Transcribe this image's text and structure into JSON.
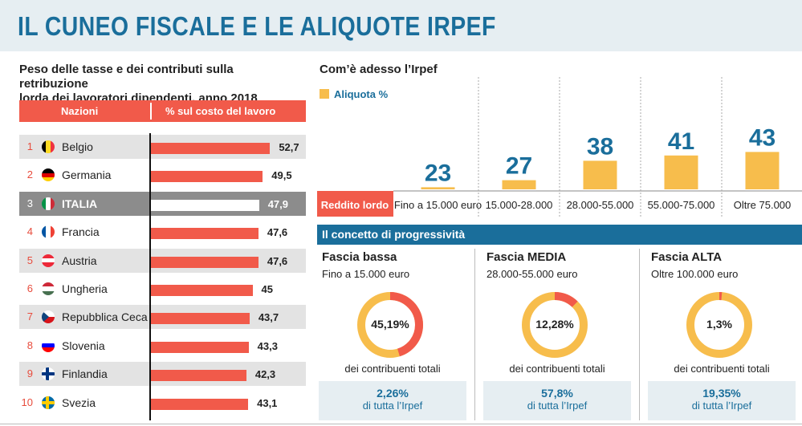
{
  "title": "IL CUNEO FISCALE E LE ALIQUOTE IRPEF",
  "left": {
    "subtitle_line1": "Peso delle tasse e dei contributi sulla retribuzione",
    "subtitle_line2": "lorda dei lavoratori dipendenti, anno 2018",
    "header_country": "Nazioni",
    "header_value": "% sul costo del lavoro"
  },
  "right": {
    "subtitle": "Com’è adesso l’Irpef",
    "legend": "Aliquota %",
    "x_label": "Reddito lordo"
  },
  "progressivity": {
    "title": "Il concetto di progressività",
    "bands": [
      {
        "name": "Fascia bassa",
        "range": "Fino a 15.000 euro",
        "share": 45.19,
        "share_label": "45,19%",
        "caption": "dei contribuenti totali",
        "irpef": "2,26%",
        "irpef_label": "di tutta l’Irpef"
      },
      {
        "name": "Fascia MEDIA",
        "range": "28.000-55.000 euro",
        "share": 12.28,
        "share_label": "12,28%",
        "caption": "dei contribuenti totali",
        "irpef": "57,8%",
        "irpef_label": "di tutta l’Irpef"
      },
      {
        "name": "Fascia ALTA",
        "range": "Oltre 100.000 euro",
        "share": 1.3,
        "share_label": "1,3%",
        "caption": "dei contribuenti totali",
        "irpef": "19,35%",
        "irpef_label": "di tutta l’Irpef"
      }
    ]
  },
  "colors": {
    "accent_blue": "#1a6e9b",
    "red": "#f15a4a",
    "yellow": "#f7bd4c",
    "donut_red": "#f15a4a"
  },
  "chart_data": [
    {
      "type": "bar",
      "orientation": "horizontal",
      "title": "Peso delle tasse e dei contributi sulla retribuzione lorda dei lavoratori dipendenti, anno 2018",
      "ylabel": "% sul costo del lavoro",
      "xlim": [
        0,
        60
      ],
      "categories": [
        "Belgio",
        "Germania",
        "ITALIA",
        "Francia",
        "Austria",
        "Ungheria",
        "Repubblica Ceca",
        "Slovenia",
        "Finlandia",
        "Svezia"
      ],
      "ranks": [
        "1",
        "2",
        "3",
        "4",
        "5",
        "6",
        "7",
        "8",
        "9",
        "10"
      ],
      "values": [
        52.7,
        49.5,
        47.9,
        47.6,
        47.6,
        45,
        43.7,
        43.3,
        42.3,
        43.1
      ],
      "value_labels": [
        "52,7",
        "49,5",
        "47,9",
        "47,6",
        "47,6",
        "45",
        "43,7",
        "43,3",
        "42,3",
        "43,1"
      ],
      "highlight": "ITALIA"
    },
    {
      "type": "bar",
      "title": "Com’è adesso l’Irpef",
      "xlabel": "Reddito lordo",
      "categories": [
        "Fino a 15.000 euro",
        "15.000-28.000",
        "28.000-55.000",
        "55.000-75.000",
        "Oltre 75.000"
      ],
      "series": [
        {
          "name": "Aliquota %",
          "values": [
            23,
            27,
            38,
            41,
            43
          ]
        }
      ],
      "ylim": [
        0,
        50
      ]
    },
    {
      "type": "pie",
      "title": "Il concetto di progressività",
      "categories": [
        "Fascia bassa",
        "Fascia MEDIA",
        "Fascia ALTA"
      ],
      "values": [
        45.19,
        12.28,
        1.3
      ]
    }
  ]
}
